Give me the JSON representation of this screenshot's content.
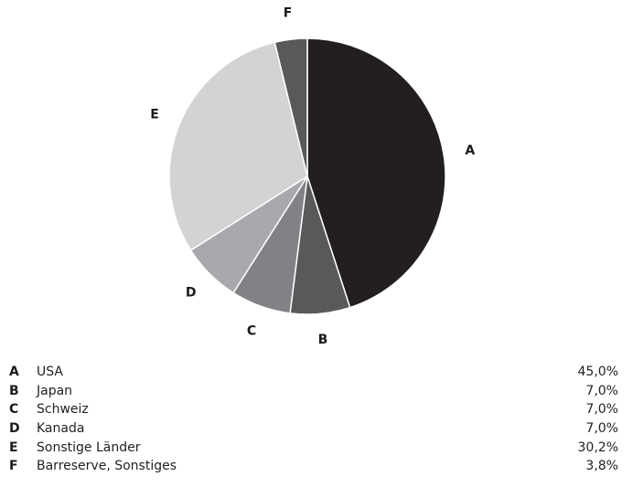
{
  "chart_data": {
    "type": "pie",
    "categories": [
      "A",
      "B",
      "C",
      "D",
      "E",
      "F"
    ],
    "names": [
      "USA",
      "Japan",
      "Schweiz",
      "Kanada",
      "Sonstige Länder",
      "Barreserve, Sonstiges"
    ],
    "values": [
      45.0,
      7.0,
      7.0,
      7.0,
      30.2,
      3.8
    ],
    "value_labels": [
      "45,0%",
      "7,0%",
      "7,0%",
      "7,0%",
      "30,2%",
      "3,8%"
    ],
    "colors": [
      "#231f20",
      "#58595b",
      "#808285",
      "#a7a9ac",
      "#d1d3d4",
      "#58595b"
    ],
    "start_angle": "12 o'clock",
    "direction": "clockwise",
    "legend_position": "bottom"
  }
}
